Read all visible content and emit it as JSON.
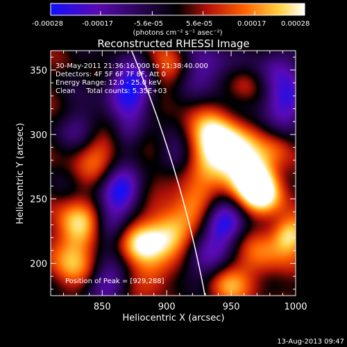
{
  "colorbar": {
    "tick_labels": [
      "-0.00028",
      "-0.00017",
      "-5.6e-05",
      "5.6e-05",
      "0.00017",
      "0.00028"
    ],
    "tick_values": [
      -0.00028,
      -0.00017,
      -5.6e-05,
      5.6e-05,
      0.00017,
      0.00028
    ],
    "range": [
      -0.00028,
      0.00028
    ],
    "unit_label": "(photons cm⁻² s⁻¹ asec⁻²)",
    "stops": [
      "#1010ff",
      "#5a0ab4",
      "#000000",
      "#b41208",
      "#ff6000",
      "#ffd040",
      "#ffffff"
    ]
  },
  "title": "Reconstructed RHESSI Image",
  "info": {
    "line1": "30-May-2011 21:36:16.000 to 21:38:40.000",
    "line2": "Detectors: 4F 5F 6F 7F 8F, Att 0",
    "line3": "Energy Range: 12.0 - 25.0 keV",
    "line4": "Clean     Total counts: 5.35E+03"
  },
  "peak_text": "Position of Peak = [929,288]",
  "peak": [
    929,
    288
  ],
  "x_axis": {
    "label": "Heliocentric X (arcsec)",
    "ticks": [
      "850",
      "900",
      "950",
      "1000"
    ],
    "range": [
      810,
      1000
    ]
  },
  "y_axis": {
    "label": "Heliocentric Y (arcsec)",
    "ticks": [
      "200",
      "250",
      "300",
      "350"
    ],
    "range": [
      175,
      365
    ]
  },
  "footer_date": "13-Aug-2013 09:47",
  "limb_color": "#ffffff",
  "blobs": [
    {
      "x": 872,
      "y": 335,
      "a": -1.0,
      "s": 14
    },
    {
      "x": 865,
      "y": 258,
      "a": -1.0,
      "s": 12
    },
    {
      "x": 836,
      "y": 304,
      "a": -0.5,
      "s": 12
    },
    {
      "x": 847,
      "y": 285,
      "a": 0.55,
      "s": 14
    },
    {
      "x": 903,
      "y": 350,
      "a": 0.5,
      "s": 12
    },
    {
      "x": 930,
      "y": 350,
      "a": -0.7,
      "s": 14
    },
    {
      "x": 908,
      "y": 282,
      "a": -0.55,
      "s": 12
    },
    {
      "x": 903,
      "y": 265,
      "a": 0.4,
      "s": 12
    },
    {
      "x": 936,
      "y": 295,
      "a": 1.0,
      "s": 16
    },
    {
      "x": 952,
      "y": 283,
      "a": 0.85,
      "s": 14
    },
    {
      "x": 968,
      "y": 265,
      "a": 0.95,
      "s": 13
    },
    {
      "x": 975,
      "y": 253,
      "a": 0.8,
      "s": 12
    },
    {
      "x": 990,
      "y": 325,
      "a": -0.8,
      "s": 14
    },
    {
      "x": 988,
      "y": 290,
      "a": 0.35,
      "s": 10
    },
    {
      "x": 902,
      "y": 222,
      "a": 1.0,
      "s": 13
    },
    {
      "x": 880,
      "y": 215,
      "a": 0.7,
      "s": 12
    },
    {
      "x": 830,
      "y": 230,
      "a": 0.75,
      "s": 14
    },
    {
      "x": 825,
      "y": 200,
      "a": 0.6,
      "s": 14
    },
    {
      "x": 855,
      "y": 228,
      "a": -0.5,
      "s": 10
    },
    {
      "x": 945,
      "y": 230,
      "a": -0.9,
      "s": 12
    },
    {
      "x": 925,
      "y": 250,
      "a": 0.5,
      "s": 12
    },
    {
      "x": 928,
      "y": 200,
      "a": -0.6,
      "s": 14
    },
    {
      "x": 945,
      "y": 183,
      "a": 0.7,
      "s": 12
    },
    {
      "x": 975,
      "y": 205,
      "a": 0.55,
      "s": 14
    },
    {
      "x": 995,
      "y": 222,
      "a": 0.85,
      "s": 10
    },
    {
      "x": 890,
      "y": 190,
      "a": 0.5,
      "s": 12
    },
    {
      "x": 855,
      "y": 185,
      "a": -0.6,
      "s": 12
    },
    {
      "x": 985,
      "y": 355,
      "a": -0.5,
      "s": 12
    },
    {
      "x": 960,
      "y": 340,
      "a": 0.35,
      "s": 10
    },
    {
      "x": 870,
      "y": 300,
      "a": -0.4,
      "s": 10
    }
  ]
}
